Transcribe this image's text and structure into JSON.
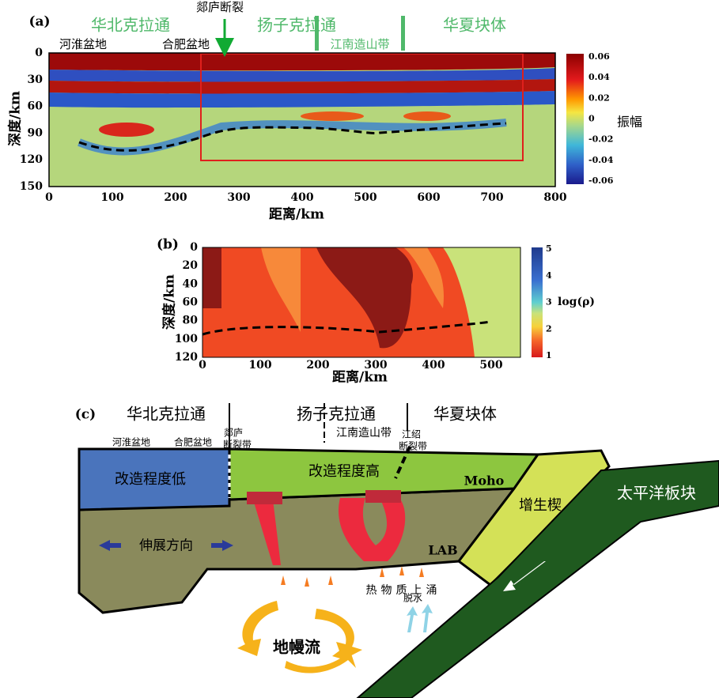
{
  "panel_a": {
    "label": "(a)",
    "blocks": [
      "华北克拉通",
      "扬子克拉通",
      "华夏块体"
    ],
    "fault": "郯庐断裂",
    "basins": [
      "河淮盆地",
      "合肥盆地"
    ],
    "orogen": "江南造山带",
    "y_label": "深度/km",
    "x_label": "距离/km",
    "x_ticks": [
      0,
      100,
      200,
      300,
      400,
      500,
      600,
      700,
      800
    ],
    "y_ticks": [
      0,
      30,
      60,
      90,
      120,
      150
    ],
    "colorbar_ticks": [
      "0.06",
      "0.04",
      "0.02",
      "0",
      "-0.02",
      "-0.04",
      "-0.06"
    ],
    "colorbar_label": "振幅"
  },
  "panel_b": {
    "label": "(b)",
    "y_label": "深度/km",
    "x_label": "距离/km",
    "x_ticks": [
      0,
      100,
      200,
      300,
      400,
      500
    ],
    "y_ticks": [
      0,
      20,
      40,
      60,
      80,
      100,
      120
    ],
    "colorbar_ticks": [
      5,
      4,
      3,
      2,
      1
    ],
    "colorbar_label": "log(ρ)"
  },
  "panel_c": {
    "label": "(c)",
    "blocks": [
      "华北克拉通",
      "扬子克拉通",
      "华夏块体"
    ],
    "basins": [
      "河淮盆地",
      "合肥盆地"
    ],
    "tanlu_fault": [
      "郯庐",
      "断裂带"
    ],
    "orogen": "江南造山带",
    "jiangshao_fault": [
      "江绍",
      "断裂带"
    ],
    "low_modification": "改造程度低",
    "high_modification": "改造程度高",
    "moho": "Moho",
    "wedge": "增生楔",
    "pacific_plate": "太平洋板块",
    "extension": "伸展方向",
    "lab": "LAB",
    "upwelling": "热物质上涌",
    "dehydration": "脱水",
    "mantle_flow": "地幔流"
  }
}
